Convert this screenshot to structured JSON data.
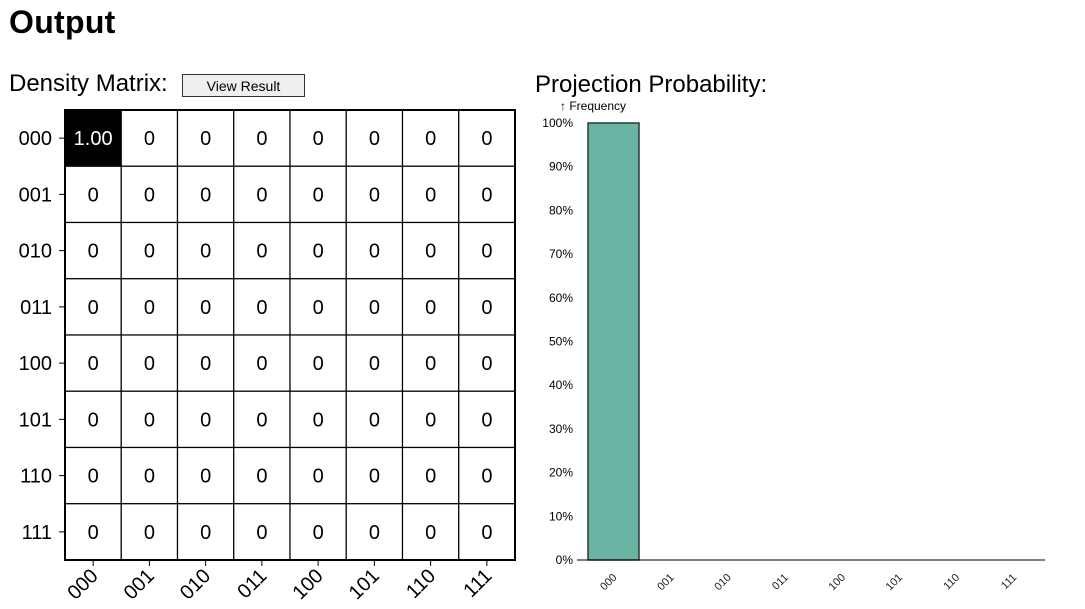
{
  "page": {
    "title": "Output"
  },
  "density_matrix": {
    "label": "Density Matrix:",
    "view_button_label": "View Result",
    "basis": [
      "000",
      "001",
      "010",
      "011",
      "100",
      "101",
      "110",
      "111"
    ],
    "cells": [
      [
        "1.00",
        "0",
        "0",
        "0",
        "0",
        "0",
        "0",
        "0"
      ],
      [
        "0",
        "0",
        "0",
        "0",
        "0",
        "0",
        "0",
        "0"
      ],
      [
        "0",
        "0",
        "0",
        "0",
        "0",
        "0",
        "0",
        "0"
      ],
      [
        "0",
        "0",
        "0",
        "0",
        "0",
        "0",
        "0",
        "0"
      ],
      [
        "0",
        "0",
        "0",
        "0",
        "0",
        "0",
        "0",
        "0"
      ],
      [
        "0",
        "0",
        "0",
        "0",
        "0",
        "0",
        "0",
        "0"
      ],
      [
        "0",
        "0",
        "0",
        "0",
        "0",
        "0",
        "0",
        "0"
      ],
      [
        "0",
        "0",
        "0",
        "0",
        "0",
        "0",
        "0",
        "0"
      ]
    ],
    "colors": {
      "highlight_fill": "#000000",
      "highlight_text": "#ffffff",
      "cell_fill": "#ffffff",
      "cell_text": "#000000",
      "border": "#000000"
    }
  },
  "projection": {
    "label": "Projection Probability:"
  },
  "chart_data": {
    "type": "bar",
    "ylabel": "↑ Frequency",
    "categories": [
      "000",
      "001",
      "010",
      "011",
      "100",
      "101",
      "110",
      "111"
    ],
    "values": [
      100,
      0,
      0,
      0,
      0,
      0,
      0,
      0
    ],
    "ylim": [
      0,
      100
    ],
    "yticks": [
      "0%",
      "10%",
      "20%",
      "30%",
      "40%",
      "50%",
      "60%",
      "70%",
      "80%",
      "90%",
      "100%"
    ],
    "grid": false,
    "bar_color": "#69b3a2",
    "bar_stroke": "#2d3b35"
  }
}
